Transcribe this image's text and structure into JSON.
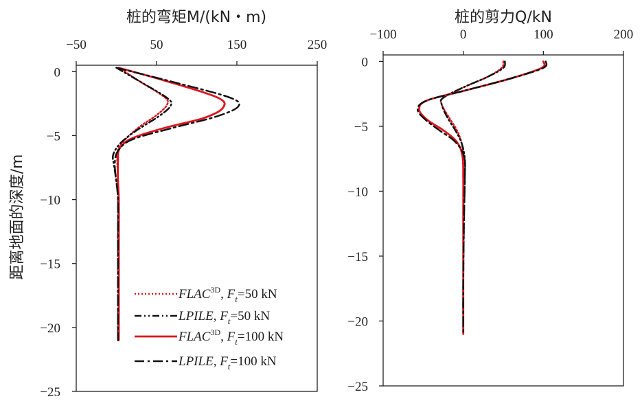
{
  "chart_data": [
    {
      "type": "line",
      "title": "桩的弯矩M/(kN・m)",
      "xlabel": "桩的弯矩M/(kN・m)",
      "ylabel": "距离地面的深度/m",
      "xlim": [
        -50,
        250
      ],
      "ylim": [
        -25,
        0.5
      ],
      "x_ticks": [
        -50,
        50,
        150,
        250
      ],
      "y_ticks": [
        0,
        -5,
        -10,
        -15,
        -20,
        -25
      ],
      "x_tick_labels": [
        "−50",
        "50",
        "150",
        "250"
      ],
      "y_tick_labels": [
        "0",
        "−5",
        "−10",
        "−15",
        "−20",
        "−25"
      ],
      "x_axis_position": "top",
      "grid": false,
      "legend_position": "bottom-right",
      "legend": [
        {
          "label": "FLAC3D, Ft=50 kN",
          "color": "#e0141e",
          "style": "dotted"
        },
        {
          "label": "LPILE, Ft=50 kN",
          "color": "#111111",
          "style": "dash-dot-dot"
        },
        {
          "label": "FLAC3D, Ft=100 kN",
          "color": "#e0141e",
          "style": "solid"
        },
        {
          "label": "LPILE, Ft=100 kN",
          "color": "#111111",
          "style": "dash-dot"
        }
      ],
      "series": [
        {
          "name": "FLAC3D, Ft=50 kN",
          "color": "#e0141e",
          "dash": "2 3",
          "width": 2.5,
          "x": [
            3,
            30,
            60,
            63,
            50,
            27,
            8,
            1,
            1,
            2,
            3,
            3,
            3,
            3
          ],
          "y": [
            0.3,
            -0.8,
            -2.0,
            -2.6,
            -3.4,
            -4.4,
            -5.5,
            -6.3,
            -7.0,
            -8.5,
            -10,
            -13,
            -17,
            -21
          ]
        },
        {
          "name": "LPILE, Ft=50 kN",
          "color": "#111111",
          "dash": "10 4 2 4 2 4",
          "width": 2.5,
          "x": [
            0,
            30,
            62,
            68,
            55,
            25,
            5,
            -4,
            -3,
            0,
            2,
            2,
            2,
            2
          ],
          "y": [
            0.3,
            -0.8,
            -2.0,
            -2.6,
            -3.4,
            -4.6,
            -5.6,
            -6.5,
            -7.3,
            -8.6,
            -10,
            -13,
            -17,
            -21
          ]
        },
        {
          "name": "FLAC3D, Ft=100 kN",
          "color": "#e0141e",
          "dash": "",
          "width": 2.8,
          "x": [
            3,
            60,
            125,
            133,
            110,
            60,
            20,
            4,
            2,
            2,
            3,
            3,
            3,
            3
          ],
          "y": [
            0.3,
            -0.7,
            -2.0,
            -2.8,
            -3.6,
            -4.4,
            -5.2,
            -6.0,
            -7.0,
            -8.5,
            -10,
            -13,
            -17,
            -21
          ]
        },
        {
          "name": "LPILE, Ft=100 kN",
          "color": "#111111",
          "dash": "14 5 3 5",
          "width": 2.5,
          "x": [
            0,
            70,
            140,
            152,
            125,
            70,
            20,
            2,
            -2,
            0,
            2,
            2,
            2,
            2
          ],
          "y": [
            0.3,
            -0.8,
            -2.0,
            -2.7,
            -3.5,
            -4.4,
            -5.3,
            -6.2,
            -7.2,
            -8.6,
            -10,
            -13,
            -17,
            -21
          ]
        }
      ]
    },
    {
      "type": "line",
      "title": "桩的剪力Q/kN",
      "xlabel": "桩的剪力Q/kN",
      "ylabel": "",
      "xlim": [
        -100,
        200
      ],
      "ylim": [
        -25,
        0.5
      ],
      "x_ticks": [
        -100,
        0,
        100,
        200
      ],
      "y_ticks": [
        0,
        -5,
        -10,
        -15,
        -20,
        -25
      ],
      "x_tick_labels": [
        "−100",
        "0",
        "100",
        "200"
      ],
      "y_tick_labels": [
        "0",
        "−5",
        "−10",
        "−15",
        "−20",
        "−25"
      ],
      "x_axis_position": "top",
      "grid": false,
      "series": [
        {
          "name": "FLAC3D, Ft=50 kN",
          "color": "#e0141e",
          "dash": "2 3",
          "width": 2.5,
          "x": [
            50,
            48,
            30,
            0,
            -25,
            -27,
            -18,
            -8,
            -2,
            0,
            0,
            0,
            0,
            0
          ],
          "y": [
            0,
            -0.5,
            -1.2,
            -2.0,
            -2.8,
            -3.3,
            -4.3,
            -5.3,
            -6.3,
            -7.5,
            -9,
            -12,
            -17,
            -21
          ]
        },
        {
          "name": "LPILE, Ft=50 kN",
          "color": "#111111",
          "dash": "10 4 2 4 2 4",
          "width": 2.5,
          "x": [
            52,
            50,
            30,
            0,
            -25,
            -27,
            -20,
            -10,
            -2,
            2,
            2,
            1,
            0,
            0
          ],
          "y": [
            0,
            -0.5,
            -1.2,
            -2.0,
            -2.8,
            -3.3,
            -4.3,
            -5.3,
            -6.3,
            -7.5,
            -9,
            -12,
            -17,
            -21
          ]
        },
        {
          "name": "FLAC3D, Ft=100 kN",
          "color": "#e0141e",
          "dash": "",
          "width": 2.8,
          "x": [
            100,
            98,
            60,
            5,
            -45,
            -55,
            -45,
            -25,
            -8,
            -1,
            0,
            0,
            0,
            0
          ],
          "y": [
            0,
            -0.5,
            -1.3,
            -2.2,
            -3.0,
            -3.7,
            -4.5,
            -5.3,
            -6.2,
            -7.3,
            -9,
            -12,
            -17,
            -21
          ]
        },
        {
          "name": "LPILE, Ft=100 kN",
          "color": "#111111",
          "dash": "14 5 3 5",
          "width": 2.5,
          "x": [
            103,
            100,
            60,
            5,
            -45,
            -57,
            -47,
            -30,
            -10,
            1,
            2,
            1,
            0,
            0
          ],
          "y": [
            0,
            -0.5,
            -1.3,
            -2.2,
            -3.0,
            -3.7,
            -4.5,
            -5.3,
            -6.2,
            -7.3,
            -9,
            -12,
            -17,
            -21
          ]
        }
      ]
    }
  ]
}
